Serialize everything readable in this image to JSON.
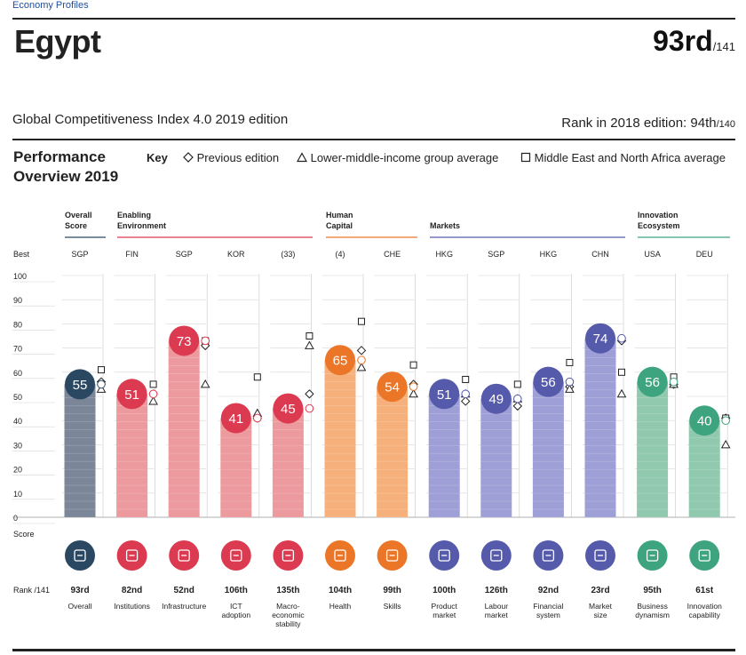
{
  "header": {
    "breadcrumb": "Economy Profiles",
    "country": "Egypt",
    "rank": "93rd",
    "rank_of": "/141",
    "edition": "Global Competitiveness Index 4.0 2019 edition",
    "prev_rank_label": "Rank in 2018 edition: 94th",
    "prev_rank_of": "/140"
  },
  "key": {
    "title_line1": "Performance",
    "title_line2": "Overview 2019",
    "label": "Key",
    "previous": "Previous edition",
    "income": "Lower-middle-income group average",
    "region": "Middle East and North Africa average"
  },
  "colors": {
    "overall": "#7b8699",
    "overall_dark": "#2b4863",
    "enabling": "#ec9a9d",
    "enabling_dark": "#dc3a50",
    "human": "#f6b07b",
    "human_dark": "#ec7628",
    "markets": "#9d9fd6",
    "markets_dark": "#565aab",
    "innovation": "#90c9ae",
    "innovation_dark": "#3ea47f"
  },
  "chart_data": {
    "type": "bar",
    "title": "Performance Overview 2019",
    "ylabel": "Score",
    "ylim": [
      0,
      100
    ],
    "yticks": [
      "100",
      "90",
      "80",
      "70",
      "60",
      "50",
      "40",
      "30",
      "20",
      "10",
      "0"
    ],
    "best_label": "Best",
    "score_label": "Score",
    "rank_label": "Rank /141",
    "groups": [
      {
        "name": "Overall Score",
        "line1": "Overall",
        "line2": "Score"
      },
      {
        "name": "Enabling Environment",
        "line1": "Enabling",
        "line2": "Environment"
      },
      {
        "name": "Human Capital",
        "line1": "Human",
        "line2": "Capital"
      },
      {
        "name": "Markets",
        "line1": "Markets",
        "line2": ""
      },
      {
        "name": "Innovation Ecosystem",
        "line1": "Innovation",
        "line2": "Ecosystem"
      }
    ],
    "pillars": [
      {
        "label1": "Overall",
        "label2": "",
        "label3": "",
        "score": 55,
        "score_label": "55",
        "rank": "93rd",
        "best": "SGP",
        "previous": 56,
        "income": 53,
        "region": 61,
        "group": "overall",
        "icon": "award-icon"
      },
      {
        "label1": "Institutions",
        "label2": "",
        "label3": "",
        "score": 51,
        "score_label": "51",
        "rank": "82nd",
        "best": "FIN",
        "previous": 51,
        "income": 48,
        "region": 55,
        "group": "enabling",
        "icon": "institutions-icon"
      },
      {
        "label1": "Infrastructure",
        "label2": "",
        "label3": "",
        "score": 73,
        "score_label": "73",
        "rank": "52nd",
        "best": "SGP",
        "previous": 71,
        "income": 55,
        "region": 73,
        "group": "enabling",
        "icon": "infrastructure-icon"
      },
      {
        "label1": "ICT",
        "label2": "adoption",
        "label3": "",
        "score": 41,
        "score_label": "41",
        "rank": "106th",
        "best": "KOR",
        "previous": 41,
        "income": 43,
        "region": 58,
        "group": "enabling",
        "icon": "ict-icon"
      },
      {
        "label1": "Macro-",
        "label2": "economic",
        "label3": "stability",
        "score": 45,
        "score_label": "45",
        "rank": "135th",
        "best": "(33)",
        "previous": 51,
        "income": 71,
        "region": 75,
        "group": "enabling",
        "icon": "macro-icon"
      },
      {
        "label1": "Health",
        "label2": "",
        "label3": "",
        "score": 65,
        "score_label": "65",
        "rank": "104th",
        "best": "(4)",
        "previous": 69,
        "income": 62,
        "region": 81,
        "group": "human",
        "icon": "health-icon"
      },
      {
        "label1": "Skills",
        "label2": "",
        "label3": "",
        "score": 54,
        "score_label": "54",
        "rank": "99th",
        "best": "CHE",
        "previous": 55,
        "income": 51,
        "region": 63,
        "group": "human",
        "icon": "skills-icon"
      },
      {
        "label1": "Product",
        "label2": "market",
        "label3": "",
        "score": 51,
        "score_label": "51",
        "rank": "100th",
        "best": "HKG",
        "previous": 48,
        "income": 51,
        "region": 57,
        "group": "markets",
        "icon": "product-icon"
      },
      {
        "label1": "Labour",
        "label2": "market",
        "label3": "",
        "score": 49,
        "score_label": "49",
        "rank": "126th",
        "best": "SGP",
        "previous": 46,
        "income": 49,
        "region": 55,
        "group": "markets",
        "icon": "labour-icon"
      },
      {
        "label1": "Financial",
        "label2": "system",
        "label3": "",
        "score": 56,
        "score_label": "56",
        "rank": "92nd",
        "best": "HKG",
        "previous": 54,
        "income": 53,
        "region": 64,
        "group": "markets",
        "icon": "financial-icon"
      },
      {
        "label1": "Market",
        "label2": "size",
        "label3": "",
        "score": 74,
        "score_label": "74",
        "rank": "23rd",
        "best": "CHN",
        "previous": 73,
        "income": 51,
        "region": 60,
        "group": "markets",
        "icon": "market-size-icon"
      },
      {
        "label1": "Business",
        "label2": "dynamism",
        "label3": "",
        "score": 56,
        "score_label": "56",
        "rank": "95th",
        "best": "USA",
        "previous": 55,
        "income": 55,
        "region": 58,
        "group": "innovation",
        "icon": "business-icon"
      },
      {
        "label1": "Innovation",
        "label2": "capability",
        "label3": "",
        "score": 40,
        "score_label": "40",
        "rank": "61st",
        "best": "DEU",
        "previous": 41,
        "income": 30,
        "region": 41,
        "group": "innovation",
        "icon": "innovation-icon"
      }
    ]
  }
}
